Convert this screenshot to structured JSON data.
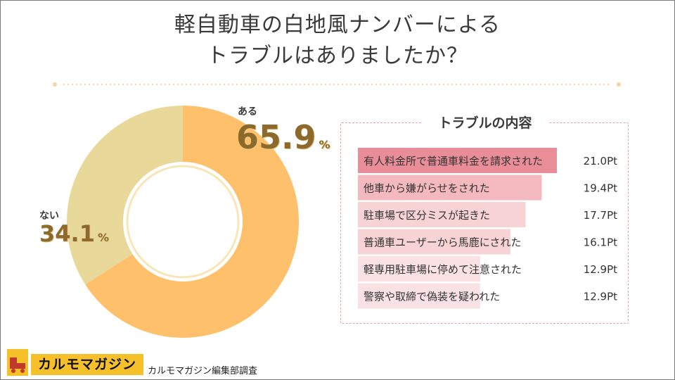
{
  "title": {
    "line1": "軽自動車の白地風ナンバーによる",
    "line2": "トラブルはありましたか？"
  },
  "chart_data": [
    {
      "type": "pie",
      "variant": "donut",
      "title": "軽自動車の白地風ナンバーによるトラブルはありましたか？",
      "categories": [
        "ある",
        "ない"
      ],
      "values": [
        65.9,
        34.1
      ],
      "unit": "%",
      "colors": [
        "#ffc06b",
        "#e8d89a"
      ]
    },
    {
      "type": "bar",
      "orientation": "horizontal",
      "title": "トラブルの内容",
      "categories": [
        "有人料金所で普通車料金を請求された",
        "他車から嫌がらせをされた",
        "駐車場で区分ミスが起きた",
        "普通車ユーザーから馬鹿にされた",
        "軽専用駐車場に停めて注意された",
        "警察や取締で偽装を疑われた"
      ],
      "values": [
        21.0,
        19.4,
        17.7,
        16.1,
        12.9,
        12.9
      ],
      "value_labels": [
        "21.0Pt",
        "19.4Pt",
        "17.7Pt",
        "16.1Pt",
        "12.9Pt",
        "12.9Pt"
      ],
      "unit": "Pt",
      "colors": [
        "#e98e98",
        "#f3b9be",
        "#f8d3d6",
        "#f8d3d6",
        "#fae2e4",
        "#fae2e4"
      ]
    }
  ],
  "donut_labels": {
    "yes_label": "ある",
    "yes_value": "65.9",
    "no_label": "ない",
    "no_value": "34.1",
    "unit": "%"
  },
  "footer": {
    "logo": "カルモマガジン",
    "credit": "カルモマガジン編集部調査"
  },
  "colors": {
    "divider": "#f0d9a0",
    "panel_border": "#e5a3a8",
    "logo_bg": "#f5c02a"
  }
}
